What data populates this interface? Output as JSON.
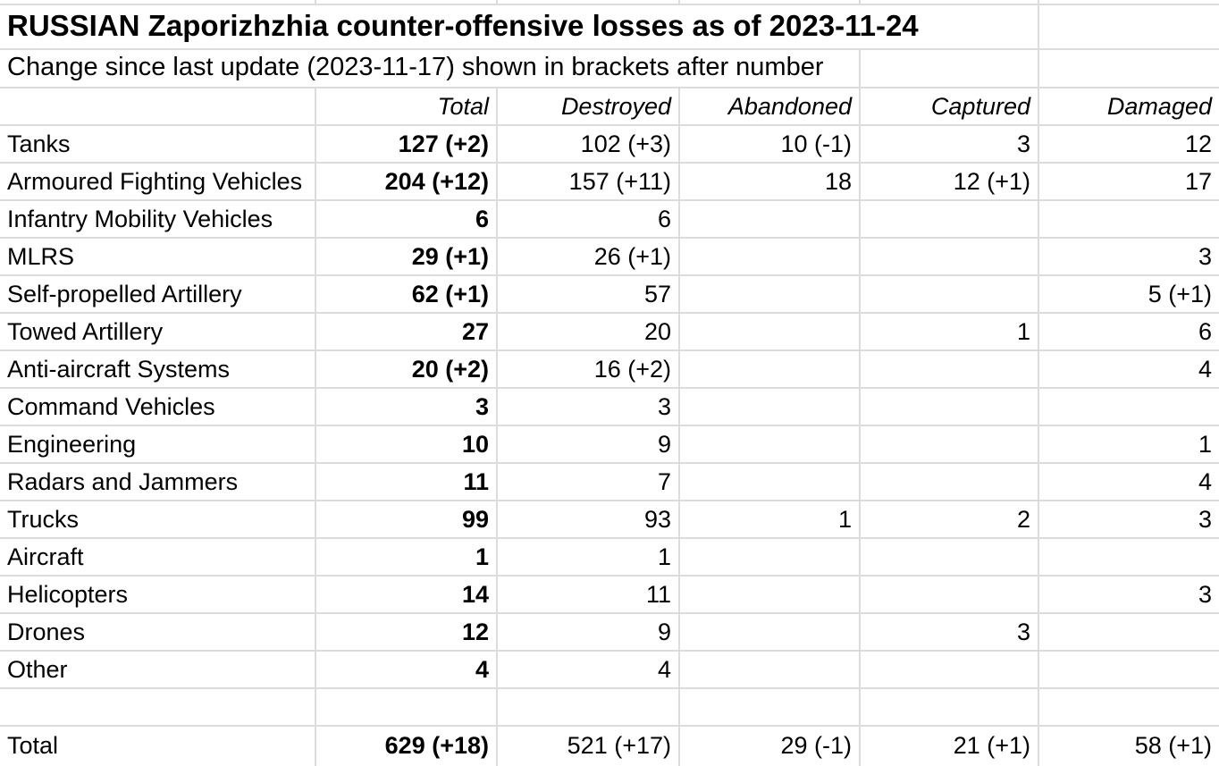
{
  "title": "RUSSIAN Zaporizhzhia counter-offensive losses as of 2023-11-24",
  "subtitle": "Change since last update (2023-11-17) shown in brackets after number",
  "table": {
    "columns": [
      "",
      "Total",
      "Destroyed",
      "Abandoned",
      "Captured",
      "Damaged"
    ],
    "rows": [
      {
        "label": "Tanks",
        "total": "127 (+2)",
        "destroyed": "102 (+3)",
        "abandoned": "10 (-1)",
        "captured": "3",
        "damaged": "12"
      },
      {
        "label": "Armoured Fighting Vehicles",
        "total": "204 (+12)",
        "destroyed": "157 (+11)",
        "abandoned": "18",
        "captured": "12 (+1)",
        "damaged": "17"
      },
      {
        "label": "Infantry Mobility Vehicles",
        "total": "6",
        "destroyed": "6",
        "abandoned": "",
        "captured": "",
        "damaged": ""
      },
      {
        "label": "MLRS",
        "total": "29 (+1)",
        "destroyed": "26 (+1)",
        "abandoned": "",
        "captured": "",
        "damaged": "3"
      },
      {
        "label": "Self-propelled Artillery",
        "total": "62 (+1)",
        "destroyed": "57",
        "abandoned": "",
        "captured": "",
        "damaged": "5 (+1)"
      },
      {
        "label": "Towed Artillery",
        "total": "27",
        "destroyed": "20",
        "abandoned": "",
        "captured": "1",
        "damaged": "6"
      },
      {
        "label": "Anti-aircraft Systems",
        "total": "20 (+2)",
        "destroyed": "16 (+2)",
        "abandoned": "",
        "captured": "",
        "damaged": "4"
      },
      {
        "label": "Command Vehicles",
        "total": "3",
        "destroyed": "3",
        "abandoned": "",
        "captured": "",
        "damaged": ""
      },
      {
        "label": "Engineering",
        "total": "10",
        "destroyed": "9",
        "abandoned": "",
        "captured": "",
        "damaged": "1"
      },
      {
        "label": "Radars and Jammers",
        "total": "11",
        "destroyed": "7",
        "abandoned": "",
        "captured": "",
        "damaged": "4"
      },
      {
        "label": "Trucks",
        "total": "99",
        "destroyed": "93",
        "abandoned": "1",
        "captured": "2",
        "damaged": "3"
      },
      {
        "label": "Aircraft",
        "total": "1",
        "destroyed": "1",
        "abandoned": "",
        "captured": "",
        "damaged": ""
      },
      {
        "label": "Helicopters",
        "total": "14",
        "destroyed": "11",
        "abandoned": "",
        "captured": "",
        "damaged": "3"
      },
      {
        "label": "Drones",
        "total": "12",
        "destroyed": "9",
        "abandoned": "",
        "captured": "3",
        "damaged": ""
      },
      {
        "label": "Other",
        "total": "4",
        "destroyed": "4",
        "abandoned": "",
        "captured": "",
        "damaged": ""
      }
    ],
    "total_row": {
      "label": "Total",
      "total": "629 (+18)",
      "destroyed": "521 (+17)",
      "abandoned": "29 (-1)",
      "captured": "21 (+1)",
      "damaged": "58 (+1)"
    }
  },
  "colors": {
    "gridline": "#dcdcdc",
    "background": "#ffffff",
    "text": "#000000"
  }
}
